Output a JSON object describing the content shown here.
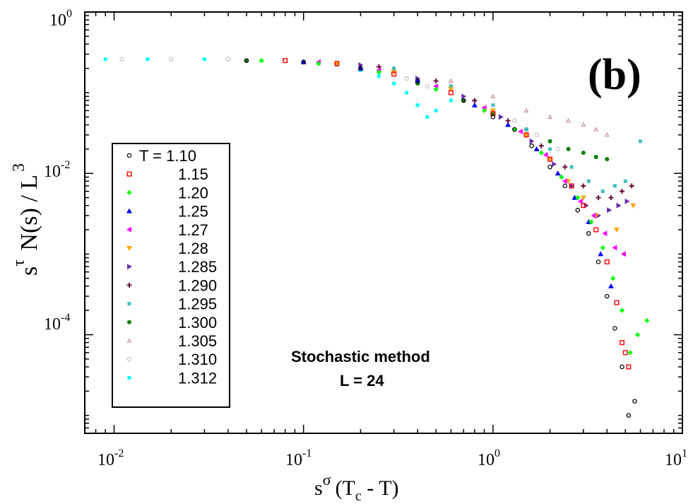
{
  "chart_data": {
    "type": "scatter",
    "panel_label": "(b)",
    "xscale": "log",
    "yscale": "log",
    "xlim": [
      0.007,
      10
    ],
    "ylim": [
      6e-06,
      1
    ],
    "x_ticks": [
      {
        "base": "10",
        "exp": "-2",
        "value": 0.01
      },
      {
        "base": "10",
        "exp": "-1",
        "value": 0.1
      },
      {
        "base": "10",
        "exp": "0",
        "value": 1
      },
      {
        "base": "10",
        "exp": "1",
        "value": 10
      }
    ],
    "y_ticks": [
      {
        "base": "10",
        "exp": "0",
        "value": 1
      },
      {
        "base": "10",
        "exp": "-2",
        "value": 0.01
      },
      {
        "base": "10",
        "exp": "-4",
        "value": 0.0001
      }
    ],
    "xlabel": {
      "s": "s",
      "sigma": "σ",
      "open": "(T",
      "c": "c",
      "rest": " - T)"
    },
    "ylabel": {
      "s": "s",
      "tau": "τ",
      "main": " N(s) / L",
      "exp": "3"
    },
    "annotation": {
      "line1": "Stochastic method",
      "line2": "L = 24"
    },
    "legend_placement": "left",
    "series": [
      {
        "name": "T = 1.10",
        "color": "#000000",
        "marker": "open-circle",
        "x": [
          0.05,
          0.1,
          0.2,
          0.4,
          0.7,
          1.0,
          1.3,
          1.6,
          2.0,
          2.4,
          2.8,
          3.2,
          3.6,
          4.0,
          4.4,
          4.8,
          5.2,
          5.6
        ],
        "y": [
          0.25,
          0.24,
          0.2,
          0.14,
          0.08,
          0.05,
          0.035,
          0.022,
          0.012,
          0.007,
          0.0035,
          0.0018,
          0.0008,
          0.0003,
          0.00012,
          4e-05,
          1e-05,
          1.5e-05
        ]
      },
      {
        "name": "1.15",
        "color": "#ff0000",
        "marker": "open-square",
        "x": [
          0.08,
          0.15,
          0.3,
          0.6,
          1.0,
          1.5,
          2.0,
          2.6,
          3.0,
          3.5,
          4.0,
          4.5,
          4.8,
          5.0,
          5.2
        ],
        "y": [
          0.25,
          0.23,
          0.17,
          0.1,
          0.055,
          0.03,
          0.015,
          0.007,
          0.004,
          0.002,
          0.0008,
          0.00025,
          8e-05,
          6e-05,
          4e-05
        ]
      },
      {
        "name": "1.20",
        "color": "#00ff00",
        "marker": "diamond",
        "x": [
          0.06,
          0.12,
          0.25,
          0.5,
          0.9,
          1.3,
          1.8,
          2.3,
          2.8,
          3.3,
          3.8,
          4.3,
          4.8,
          5.3,
          5.8,
          6.5
        ],
        "y": [
          0.25,
          0.23,
          0.18,
          0.11,
          0.06,
          0.035,
          0.018,
          0.009,
          0.005,
          0.0025,
          0.0012,
          0.0005,
          0.0002,
          6e-05,
          0.0001,
          0.00015
        ]
      },
      {
        "name": "1.25",
        "color": "#0000ff",
        "marker": "triangle-up",
        "x": [
          0.1,
          0.2,
          0.4,
          0.8,
          1.2,
          1.7,
          2.2,
          2.7,
          3.2,
          3.7,
          4.2
        ],
        "y": [
          0.24,
          0.2,
          0.14,
          0.07,
          0.04,
          0.02,
          0.01,
          0.005,
          0.0025,
          0.001,
          0.0004
        ]
      },
      {
        "name": "1.27",
        "color": "#ff00ff",
        "marker": "triangle-left",
        "x": [
          0.12,
          0.25,
          0.5,
          0.9,
          1.4,
          1.9,
          2.4,
          2.9,
          3.4,
          3.9,
          4.4,
          4.9
        ],
        "y": [
          0.24,
          0.19,
          0.12,
          0.065,
          0.033,
          0.017,
          0.008,
          0.0045,
          0.003,
          0.0018,
          0.0012,
          0.001
        ]
      },
      {
        "name": "1.28",
        "color": "#ffa500",
        "marker": "triangle-down",
        "x": [
          0.15,
          0.3,
          0.6,
          1.0,
          1.5,
          2.0,
          2.5,
          3.0,
          3.5,
          4.5,
          5.5
        ],
        "y": [
          0.23,
          0.18,
          0.11,
          0.06,
          0.03,
          0.015,
          0.008,
          0.005,
          0.003,
          0.002,
          0.004
        ]
      },
      {
        "name": "1.285",
        "color": "#6a2ca8",
        "marker": "triangle-right",
        "x": [
          0.2,
          0.4,
          0.7,
          1.1,
          1.6,
          2.1,
          2.6,
          3.1,
          3.6,
          4.1,
          4.6,
          5.1
        ],
        "y": [
          0.22,
          0.15,
          0.09,
          0.05,
          0.025,
          0.013,
          0.007,
          0.004,
          0.003,
          0.0035,
          0.004,
          0.0045
        ]
      },
      {
        "name": "1.290",
        "color": "#6b0f3f",
        "marker": "plus",
        "x": [
          0.25,
          0.5,
          0.8,
          1.2,
          1.8,
          2.4,
          3.0,
          3.6,
          4.2,
          4.8,
          5.4
        ],
        "y": [
          0.21,
          0.14,
          0.08,
          0.045,
          0.022,
          0.012,
          0.007,
          0.005,
          0.005,
          0.006,
          0.007
        ]
      },
      {
        "name": "1.295",
        "color": "#40c0c0",
        "marker": "small-square",
        "x": [
          0.3,
          0.6,
          1.0,
          1.5,
          2.0,
          2.6,
          3.2,
          3.8,
          4.4,
          5.0,
          6.0
        ],
        "y": [
          0.2,
          0.12,
          0.07,
          0.035,
          0.02,
          0.012,
          0.008,
          0.006,
          0.007,
          0.008,
          0.025
        ]
      },
      {
        "name": "1.300",
        "color": "#008000",
        "marker": "filled-circle",
        "x": [
          0.05,
          0.1,
          0.2,
          0.4,
          0.7,
          1.0,
          1.5,
          2.0,
          2.5,
          3.0,
          3.5,
          4.0
        ],
        "y": [
          0.25,
          0.24,
          0.2,
          0.13,
          0.08,
          0.055,
          0.035,
          0.025,
          0.02,
          0.018,
          0.016,
          0.015
        ]
      },
      {
        "name": "1.305",
        "color": "#c08080",
        "marker": "small-triangle",
        "x": [
          0.3,
          0.6,
          1.0,
          1.5,
          2.0,
          2.5,
          3.0,
          3.5,
          4.0
        ],
        "y": [
          0.2,
          0.14,
          0.09,
          0.06,
          0.05,
          0.045,
          0.04,
          0.035,
          0.03
        ]
      },
      {
        "name": "1.310",
        "color": "#c8c8c8",
        "marker": "open-circle",
        "x": [
          0.011,
          0.02,
          0.04,
          0.08,
          0.15,
          0.25,
          0.35,
          0.45,
          0.6,
          0.8,
          1.0,
          1.3,
          1.7,
          2.2
        ],
        "y": [
          0.26,
          0.26,
          0.26,
          0.25,
          0.22,
          0.18,
          0.15,
          0.12,
          0.12,
          0.08,
          0.06,
          0.045,
          0.03,
          0.02
        ]
      },
      {
        "name": "1.312",
        "color": "#00ffff",
        "marker": "small-square",
        "x": [
          0.009,
          0.015,
          0.03,
          0.06,
          0.1,
          0.15,
          0.2,
          0.25,
          0.3,
          0.35,
          0.4,
          0.45,
          0.5,
          0.6
        ],
        "y": [
          0.26,
          0.26,
          0.26,
          0.25,
          0.24,
          0.22,
          0.19,
          0.16,
          0.13,
          0.1,
          0.07,
          0.05,
          0.06,
          0.08
        ]
      }
    ]
  }
}
